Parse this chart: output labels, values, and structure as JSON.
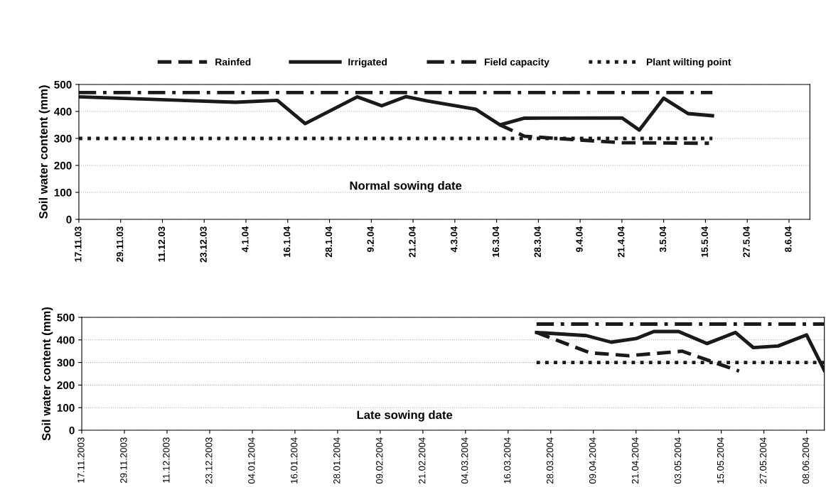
{
  "chart_data": [
    {
      "type": "line",
      "ylabel": "Soil water content (mm)",
      "annotations": [
        "Normal sowing date"
      ],
      "xlim": [
        "2003-11-17",
        "2004-06-14"
      ],
      "ylim": [
        0,
        500
      ],
      "yticks": [
        0,
        100,
        200,
        300,
        400,
        500
      ],
      "xticks": [
        {
          "value": "2003-11-17",
          "label": "17.11.03"
        },
        {
          "value": "2003-11-29",
          "label": "29.11.03"
        },
        {
          "value": "2003-12-11",
          "label": "11.12.03"
        },
        {
          "value": "2003-12-23",
          "label": "23.12.03"
        },
        {
          "value": "2004-01-04",
          "label": "4.1.04"
        },
        {
          "value": "2004-01-16",
          "label": "16.1.04"
        },
        {
          "value": "2004-01-28",
          "label": "28.1.04"
        },
        {
          "value": "2004-02-09",
          "label": "9.2.04"
        },
        {
          "value": "2004-02-21",
          "label": "21.2.04"
        },
        {
          "value": "2004-03-04",
          "label": "4.3.04"
        },
        {
          "value": "2004-03-16",
          "label": "16.3.04"
        },
        {
          "value": "2004-03-28",
          "label": "28.3.04"
        },
        {
          "value": "2004-04-09",
          "label": "9.4.04"
        },
        {
          "value": "2004-04-21",
          "label": "21.4.04"
        },
        {
          "value": "2004-05-03",
          "label": "3.5.04"
        },
        {
          "value": "2004-05-15",
          "label": "15.5.04"
        },
        {
          "value": "2004-05-27",
          "label": "27.5.04"
        },
        {
          "value": "2004-06-08",
          "label": "8.6.04"
        }
      ],
      "grid": "y",
      "legend": "top",
      "marker": "none",
      "series": [
        {
          "name": "Rainfed",
          "color": "#1a1a1a",
          "line_style": "dashed",
          "x": [
            "2004-03-17",
            "2004-03-24",
            "2004-04-08",
            "2004-04-21",
            "2004-05-16"
          ],
          "values": [
            350,
            308,
            295,
            284,
            282
          ]
        },
        {
          "name": "Irrigated",
          "color": "#1a1a1a",
          "line_style": "solid",
          "x": [
            "2003-11-17",
            "2004-01-01",
            "2004-01-13",
            "2004-01-21",
            "2004-02-05",
            "2004-02-12",
            "2004-02-19",
            "2004-02-25",
            "2004-03-10",
            "2004-03-17",
            "2004-03-24",
            "2004-04-21",
            "2004-04-26",
            "2004-05-03",
            "2004-05-10",
            "2004-05-17"
          ],
          "values": [
            454,
            434,
            441,
            355,
            454,
            421,
            455,
            439,
            408,
            350,
            375,
            376,
            331,
            449,
            392,
            384
          ]
        },
        {
          "name": "Field capacity",
          "color": "#1a1a1a",
          "line_style": "dashdot",
          "x": [
            "2003-11-17",
            "2004-05-17"
          ],
          "values": [
            470,
            470
          ]
        },
        {
          "name": "Plant wilting point",
          "color": "#1a1a1a",
          "line_style": "dotted",
          "x": [
            "2003-11-17",
            "2004-05-17"
          ],
          "values": [
            300,
            300
          ]
        }
      ]
    },
    {
      "type": "line",
      "ylabel": "Soil water content (mm)",
      "annotations": [
        "Late sowing date"
      ],
      "xlim": [
        "2003-11-17",
        "2004-06-13"
      ],
      "ylim": [
        0,
        500
      ],
      "yticks": [
        0,
        100,
        200,
        300,
        400,
        500
      ],
      "xticks": [
        {
          "value": "2003-11-17",
          "label": "17.11.2003"
        },
        {
          "value": "2003-11-29",
          "label": "29.11.2003"
        },
        {
          "value": "2003-12-11",
          "label": "11.12.2003"
        },
        {
          "value": "2003-12-23",
          "label": "23.12.2003"
        },
        {
          "value": "2004-01-04",
          "label": "04.01.2004"
        },
        {
          "value": "2004-01-16",
          "label": "16.01.2004"
        },
        {
          "value": "2004-01-28",
          "label": "28.01.2004"
        },
        {
          "value": "2004-02-09",
          "label": "09.02.2004"
        },
        {
          "value": "2004-02-21",
          "label": "21.02.2004"
        },
        {
          "value": "2004-03-04",
          "label": "04.03.2004"
        },
        {
          "value": "2004-03-16",
          "label": "16.03.2004"
        },
        {
          "value": "2004-03-28",
          "label": "28.03.2004"
        },
        {
          "value": "2004-04-09",
          "label": "09.04.2004"
        },
        {
          "value": "2004-04-21",
          "label": "21.04.2004"
        },
        {
          "value": "2004-05-03",
          "label": "03.05.2004"
        },
        {
          "value": "2004-05-15",
          "label": "15.05.2004"
        },
        {
          "value": "2004-05-27",
          "label": "27.05.2004"
        },
        {
          "value": "2004-06-08",
          "label": "08.06.2004"
        }
      ],
      "grid": "y",
      "marker": "none",
      "series": [
        {
          "color": "#1a1a1a",
          "line_style": "dashed",
          "x": [
            "2004-03-24",
            "2004-04-08",
            "2004-04-19",
            "2004-05-04",
            "2004-05-20"
          ],
          "values": [
            433,
            343,
            330,
            350,
            262
          ]
        },
        {
          "color": "#1a1a1a",
          "line_style": "solid",
          "x": [
            "2004-03-24",
            "2004-04-07",
            "2004-04-14",
            "2004-04-21",
            "2004-04-26",
            "2004-05-03",
            "2004-05-11",
            "2004-05-19",
            "2004-05-24",
            "2004-05-31",
            "2004-06-08",
            "2004-06-13"
          ],
          "values": [
            433,
            419,
            390,
            406,
            437,
            437,
            384,
            433,
            366,
            373,
            422,
            265
          ]
        },
        {
          "color": "#1a1a1a",
          "line_style": "dashdot",
          "x": [
            "2004-03-24",
            "2004-06-13"
          ],
          "values": [
            470,
            470
          ]
        },
        {
          "color": "#1a1a1a",
          "line_style": "dotted",
          "x": [
            "2004-03-24",
            "2004-06-13"
          ],
          "values": [
            300,
            300
          ]
        }
      ]
    }
  ]
}
